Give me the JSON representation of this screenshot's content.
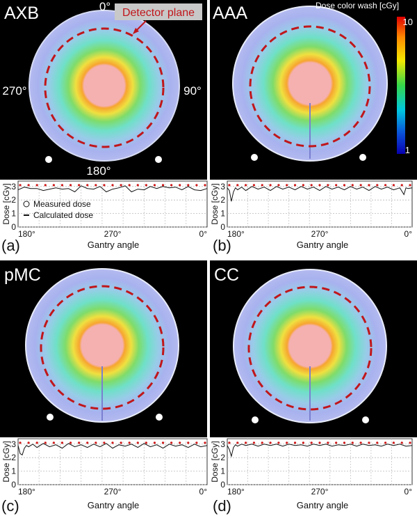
{
  "chart_data": [
    {
      "type": "heatmap",
      "panel": "AXB",
      "title": "AXB",
      "angle_labels": [
        "0°",
        "90°",
        "180°",
        "270°"
      ],
      "annotation": "Detector plane"
    },
    {
      "type": "heatmap",
      "panel": "AAA",
      "title": "AAA",
      "colorbar": {
        "title": "Dose color wash [cGy]",
        "max_label": "10",
        "min_label": "1",
        "range": [
          1,
          10
        ]
      }
    },
    {
      "type": "heatmap",
      "panel": "pMC",
      "title": "pMC"
    },
    {
      "type": "heatmap",
      "panel": "CC",
      "title": "CC"
    },
    {
      "type": "line",
      "panel_label": "(a)",
      "xlabel": "Gantry angle",
      "ylabel": "Dose [cGy]",
      "xticks": [
        "180°",
        "270°",
        "0°"
      ],
      "yticks": [
        "0",
        "1",
        "2",
        "3"
      ],
      "xlim": [
        180,
        360
      ],
      "ylim": [
        0,
        3.4
      ],
      "legend": [
        "Measured dose",
        "Calculated dose"
      ],
      "series": [
        {
          "name": "Measured dose",
          "x": [
            182,
            190,
            198,
            206,
            214,
            222,
            230,
            238,
            246,
            254,
            262,
            270,
            278,
            286,
            294,
            302,
            310,
            318,
            326,
            334,
            342,
            350,
            358
          ],
          "y": [
            3.1,
            3.1,
            3.1,
            3.1,
            3.1,
            3.1,
            3.1,
            3.1,
            3.1,
            3.1,
            3.1,
            3.1,
            3.1,
            3.1,
            3.1,
            3.1,
            3.1,
            3.1,
            3.1,
            3.1,
            3.1,
            3.1,
            3.1
          ]
        },
        {
          "name": "Calculated dose",
          "x": [
            180,
            186,
            192,
            198,
            204,
            210,
            216,
            222,
            228,
            234,
            240,
            246,
            252,
            258,
            264,
            270,
            276,
            282,
            288,
            294,
            300,
            306,
            312,
            318,
            324,
            330,
            336,
            342,
            348,
            354,
            360
          ],
          "y": [
            2.75,
            2.95,
            2.85,
            2.85,
            2.7,
            2.8,
            2.9,
            2.8,
            2.85,
            2.6,
            3.05,
            2.85,
            2.8,
            3.0,
            2.6,
            2.8,
            2.9,
            3.05,
            2.6,
            2.8,
            2.75,
            3.0,
            2.85,
            3.0,
            2.9,
            2.95,
            2.75,
            3.0,
            2.75,
            2.7,
            2.85
          ]
        }
      ]
    },
    {
      "type": "line",
      "panel_label": "(b)",
      "xlabel": "Gantry angle",
      "ylabel": "Dose [cGy]",
      "xticks": [
        "180°",
        "270°",
        "0°"
      ],
      "yticks": [
        "0",
        "1",
        "2",
        "3"
      ],
      "xlim": [
        180,
        360
      ],
      "ylim": [
        0,
        3.4
      ],
      "series": [
        {
          "name": "Measured dose",
          "x": [
            182,
            190,
            198,
            206,
            214,
            222,
            230,
            238,
            246,
            254,
            262,
            270,
            278,
            286,
            294,
            302,
            310,
            318,
            326,
            334,
            342,
            350,
            358
          ],
          "y": [
            3.1,
            3.1,
            3.1,
            3.1,
            3.1,
            3.1,
            3.1,
            3.1,
            3.1,
            3.1,
            3.1,
            3.1,
            3.1,
            3.1,
            3.1,
            3.1,
            3.1,
            3.1,
            3.1,
            3.1,
            3.1,
            3.1,
            3.1
          ]
        },
        {
          "name": "Calculated dose",
          "x": [
            180,
            182,
            184,
            186,
            188,
            190,
            194,
            198,
            204,
            210,
            216,
            222,
            228,
            234,
            240,
            246,
            252,
            258,
            264,
            270,
            276,
            282,
            288,
            294,
            300,
            306,
            312,
            318,
            324,
            330,
            336,
            342,
            348,
            352,
            354,
            356,
            360
          ],
          "y": [
            2.9,
            2.7,
            1.9,
            2.6,
            2.9,
            2.75,
            2.95,
            2.7,
            3.0,
            2.8,
            2.95,
            2.7,
            3.0,
            2.8,
            2.95,
            2.75,
            3.0,
            2.8,
            2.95,
            2.7,
            3.0,
            2.8,
            2.95,
            2.75,
            3.0,
            2.8,
            2.95,
            2.7,
            3.0,
            2.8,
            2.95,
            2.75,
            2.9,
            2.4,
            2.9,
            2.85,
            2.9
          ]
        }
      ]
    },
    {
      "type": "line",
      "panel_label": "(c)",
      "xlabel": "Gantry angle",
      "ylabel": "Dose [cGy]",
      "xticks": [
        "180°",
        "270°",
        "0°"
      ],
      "yticks": [
        "0",
        "1",
        "2",
        "3"
      ],
      "xlim": [
        180,
        360
      ],
      "ylim": [
        0,
        3.4
      ],
      "series": [
        {
          "name": "Measured dose",
          "x": [
            182,
            190,
            198,
            206,
            214,
            222,
            230,
            238,
            246,
            254,
            262,
            270,
            278,
            286,
            294,
            302,
            310,
            318,
            326,
            334,
            342,
            350,
            358
          ],
          "y": [
            3.1,
            3.1,
            3.1,
            3.1,
            3.1,
            3.1,
            3.1,
            3.1,
            3.1,
            3.1,
            3.1,
            3.1,
            3.1,
            3.1,
            3.1,
            3.1,
            3.1,
            3.1,
            3.1,
            3.1,
            3.1,
            3.1,
            3.1
          ]
        },
        {
          "name": "Calculated dose",
          "x": [
            180,
            182,
            184,
            186,
            188,
            190,
            194,
            198,
            204,
            210,
            216,
            222,
            228,
            234,
            240,
            246,
            252,
            258,
            264,
            270,
            276,
            282,
            288,
            294,
            300,
            306,
            312,
            318,
            324,
            330,
            336,
            342,
            348,
            354,
            360
          ],
          "y": [
            2.9,
            2.3,
            2.2,
            2.7,
            2.9,
            2.8,
            3.0,
            2.75,
            3.05,
            2.8,
            2.95,
            2.7,
            3.05,
            2.8,
            2.95,
            2.75,
            3.0,
            2.8,
            3.05,
            2.7,
            2.95,
            2.85,
            3.0,
            2.75,
            3.05,
            2.8,
            2.95,
            2.7,
            3.0,
            2.85,
            2.95,
            2.75,
            3.0,
            2.8,
            2.9
          ]
        }
      ]
    },
    {
      "type": "line",
      "panel_label": "(d)",
      "xlabel": "Gantry angle",
      "ylabel": "Dose [cGy]",
      "xticks": [
        "180°",
        "270°",
        "0°"
      ],
      "yticks": [
        "0",
        "1",
        "2",
        "3"
      ],
      "xlim": [
        180,
        360
      ],
      "ylim": [
        0,
        3.4
      ],
      "series": [
        {
          "name": "Measured dose",
          "x": [
            182,
            190,
            198,
            206,
            214,
            222,
            230,
            238,
            246,
            254,
            262,
            270,
            278,
            286,
            294,
            302,
            310,
            318,
            326,
            334,
            342,
            350,
            358
          ],
          "y": [
            3.1,
            3.1,
            3.1,
            3.1,
            3.1,
            3.1,
            3.1,
            3.1,
            3.1,
            3.1,
            3.1,
            3.1,
            3.1,
            3.1,
            3.1,
            3.1,
            3.1,
            3.1,
            3.1,
            3.1,
            3.1,
            3.1,
            3.1
          ]
        },
        {
          "name": "Calculated dose",
          "x": [
            180,
            182,
            184,
            186,
            188,
            190,
            194,
            198,
            204,
            210,
            216,
            222,
            228,
            234,
            240,
            246,
            252,
            258,
            264,
            270,
            276,
            282,
            288,
            294,
            300,
            306,
            312,
            318,
            324,
            330,
            336,
            342,
            348,
            354,
            360
          ],
          "y": [
            2.9,
            2.6,
            2.1,
            2.75,
            2.95,
            2.85,
            3.0,
            2.9,
            3.0,
            2.85,
            3.0,
            2.9,
            3.0,
            2.85,
            3.0,
            2.9,
            2.95,
            2.85,
            3.0,
            2.9,
            3.0,
            2.85,
            2.95,
            2.9,
            3.0,
            2.85,
            3.0,
            2.9,
            2.95,
            2.85,
            3.0,
            2.9,
            3.0,
            2.85,
            2.9
          ]
        }
      ]
    }
  ],
  "colors": {
    "background_panel": "#000000",
    "plot_background": "#ffffff",
    "detector_ring": "#c0161b",
    "measured_marker": "#d01818",
    "calculated_line": "#111111",
    "label_white": "#ffffff",
    "annotation_box": "#c8c8c8"
  }
}
